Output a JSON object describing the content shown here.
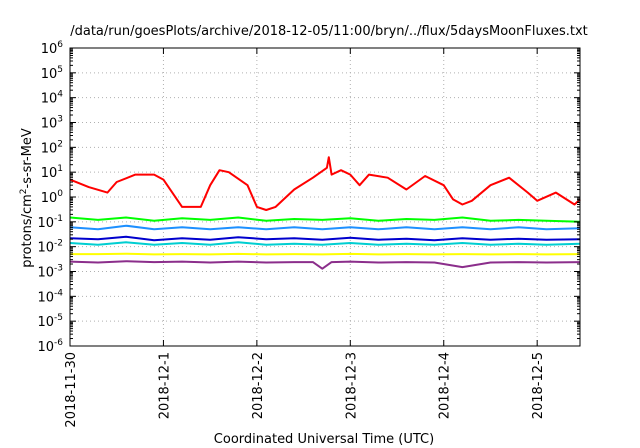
{
  "chart_data": {
    "type": "line",
    "title": "/data/run/goesPlots/archive/2018-12-05/11:00/bryn/../flux/5daysMoonFluxes.txt",
    "xlabel": "Coordinated Universal Time (UTC)",
    "ylabel": "protons/cm²-s-sr-MeV",
    "ylabel_main": "protons/cm",
    "ylabel_sup": "2",
    "ylabel_tail": "-s-sr-MeV",
    "yscale": "log",
    "ylim_exp": [
      -6,
      6
    ],
    "ytick_base": "10",
    "yticks_exp": [
      -6,
      -5,
      -4,
      -3,
      -2,
      -1,
      0,
      1,
      2,
      3,
      4,
      5,
      6
    ],
    "xlim": [
      "2018-11-30T00:00",
      "2018-12-05T11:00"
    ],
    "xticks": [
      "2018-11-30",
      "2018-12-1",
      "2018-12-2",
      "2018-12-3",
      "2018-12-4",
      "2018-12-5"
    ],
    "grid": true,
    "series": [
      {
        "color": "#ff0000",
        "x": [
          0.0,
          0.2,
          0.4,
          0.5,
          0.7,
          0.9,
          1.0,
          1.2,
          1.4,
          1.5,
          1.6,
          1.7,
          1.9,
          2.0,
          2.1,
          2.2,
          2.4,
          2.6,
          2.75,
          2.77,
          2.8,
          2.9,
          3.0,
          3.1,
          3.2,
          3.4,
          3.6,
          3.8,
          4.0,
          4.1,
          4.2,
          4.3,
          4.5,
          4.7,
          4.9,
          5.0,
          5.2,
          5.4,
          5.46
        ],
        "y": [
          5,
          2.5,
          1.5,
          4,
          8,
          8,
          5,
          0.4,
          0.4,
          3,
          12,
          10,
          3,
          0.4,
          0.3,
          0.4,
          2,
          6,
          15,
          40,
          8,
          12,
          8,
          3,
          8,
          6,
          2,
          7,
          3,
          0.8,
          0.5,
          0.7,
          3,
          6,
          1.5,
          0.7,
          1.5,
          0.5,
          0.8
        ]
      },
      {
        "color": "#00ff00",
        "x": [
          0.0,
          0.3,
          0.6,
          0.9,
          1.2,
          1.5,
          1.8,
          2.1,
          2.4,
          2.7,
          3.0,
          3.3,
          3.6,
          3.9,
          4.2,
          4.5,
          4.8,
          5.1,
          5.46
        ],
        "y": [
          0.15,
          0.12,
          0.15,
          0.11,
          0.14,
          0.12,
          0.15,
          0.11,
          0.13,
          0.12,
          0.14,
          0.11,
          0.13,
          0.12,
          0.15,
          0.11,
          0.12,
          0.11,
          0.1
        ]
      },
      {
        "color": "#1e90ff",
        "x": [
          0.0,
          0.3,
          0.6,
          0.9,
          1.2,
          1.5,
          1.8,
          2.1,
          2.4,
          2.7,
          3.0,
          3.3,
          3.6,
          3.9,
          4.2,
          4.5,
          4.8,
          5.1,
          5.46
        ],
        "y": [
          0.06,
          0.05,
          0.07,
          0.05,
          0.06,
          0.05,
          0.06,
          0.05,
          0.06,
          0.05,
          0.06,
          0.05,
          0.06,
          0.05,
          0.06,
          0.05,
          0.06,
          0.05,
          0.055
        ]
      },
      {
        "color": "#0000cd",
        "x": [
          0.0,
          0.3,
          0.6,
          0.9,
          1.2,
          1.5,
          1.8,
          2.1,
          2.4,
          2.7,
          3.0,
          3.3,
          3.6,
          3.9,
          4.2,
          4.5,
          4.8,
          5.1,
          5.46
        ],
        "y": [
          0.022,
          0.02,
          0.025,
          0.018,
          0.022,
          0.019,
          0.024,
          0.02,
          0.022,
          0.019,
          0.023,
          0.019,
          0.021,
          0.018,
          0.022,
          0.019,
          0.021,
          0.019,
          0.02
        ]
      },
      {
        "color": "#00ced1",
        "x": [
          0.0,
          0.3,
          0.6,
          0.9,
          1.2,
          1.5,
          1.8,
          2.1,
          2.4,
          2.7,
          3.0,
          3.3,
          3.6,
          3.9,
          4.2,
          4.5,
          4.8,
          5.1,
          5.46
        ],
        "y": [
          0.014,
          0.012,
          0.015,
          0.012,
          0.014,
          0.012,
          0.015,
          0.012,
          0.013,
          0.012,
          0.014,
          0.012,
          0.013,
          0.012,
          0.014,
          0.012,
          0.013,
          0.012,
          0.013
        ]
      },
      {
        "color": "#ffff00",
        "x": [
          0.0,
          0.3,
          0.6,
          0.9,
          1.2,
          1.5,
          1.8,
          2.1,
          2.4,
          2.7,
          3.0,
          3.3,
          3.6,
          3.9,
          4.2,
          4.5,
          4.8,
          5.1,
          5.46
        ],
        "y": [
          0.005,
          0.005,
          0.0052,
          0.0049,
          0.005,
          0.0049,
          0.0051,
          0.0049,
          0.005,
          0.0049,
          0.0051,
          0.0049,
          0.005,
          0.0049,
          0.005,
          0.0049,
          0.005,
          0.0049,
          0.005
        ]
      },
      {
        "color": "#8b2e8b",
        "x": [
          0.0,
          0.3,
          0.6,
          0.9,
          1.2,
          1.5,
          1.8,
          2.1,
          2.4,
          2.6,
          2.7,
          2.8,
          3.0,
          3.3,
          3.6,
          3.9,
          4.2,
          4.5,
          4.8,
          5.1,
          5.46
        ],
        "y": [
          0.0025,
          0.0023,
          0.0026,
          0.0024,
          0.0025,
          0.0023,
          0.0025,
          0.0023,
          0.0024,
          0.0024,
          0.0013,
          0.0024,
          0.0025,
          0.0023,
          0.0024,
          0.0023,
          0.0015,
          0.0023,
          0.0024,
          0.0023,
          0.0024
        ]
      }
    ]
  }
}
